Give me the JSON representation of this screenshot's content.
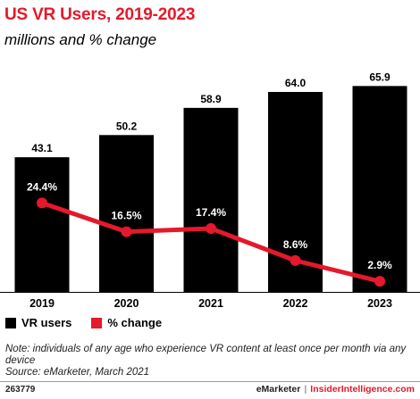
{
  "header": {
    "title": "US VR Users, 2019-2023",
    "subtitle": "millions and % change"
  },
  "colors": {
    "accent": "#e4192b",
    "bar": "#000000",
    "line": "#e4192b"
  },
  "chart_data": {
    "type": "bar",
    "categories": [
      "2019",
      "2020",
      "2021",
      "2022",
      "2023"
    ],
    "series": [
      {
        "name": "VR users",
        "type": "bar",
        "values": [
          43.1,
          50.2,
          58.9,
          64.0,
          65.9
        ],
        "labels": [
          "43.1",
          "50.2",
          "58.9",
          "64.0",
          "65.9"
        ]
      },
      {
        "name": "% change",
        "type": "line",
        "values": [
          24.4,
          16.5,
          17.4,
          8.6,
          2.9
        ],
        "labels": [
          "24.4%",
          "16.5%",
          "17.4%",
          "8.6%",
          "2.9%"
        ]
      }
    ],
    "ylim": [
      0,
      70
    ],
    "line_ylim": [
      0,
      60
    ],
    "grid": false,
    "legend": "bottom-left"
  },
  "legend": {
    "items": [
      {
        "label": "VR users",
        "color": "#000000"
      },
      {
        "label": "% change",
        "color": "#e4192b"
      }
    ]
  },
  "footer": {
    "note": "Note: individuals of any age who experience VR content at least once per month via any device",
    "source": "Source: eMarketer, March 2021",
    "chart_id": "263779",
    "brand_left": "eMarketer",
    "separator": "|",
    "brand_right": "InsiderIntelligence.com"
  }
}
